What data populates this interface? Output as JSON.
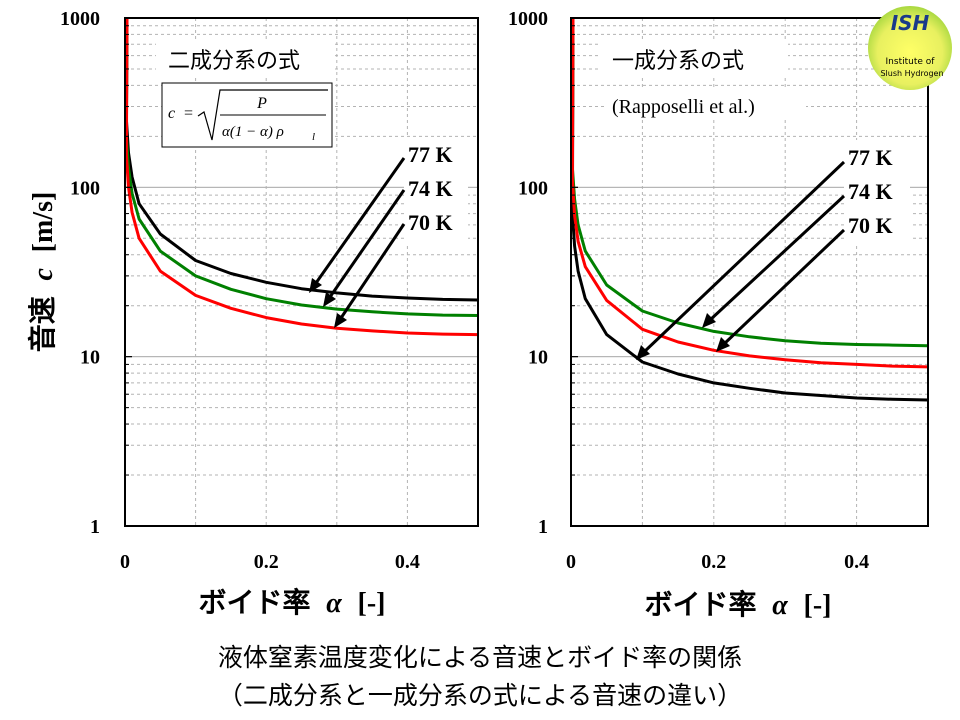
{
  "y_axis_label": {
    "main": "音速",
    "symbol": "c",
    "unit": "[m/s]"
  },
  "x_axis_label": {
    "main": "ボイド率",
    "symbol": "α",
    "unit": "[-]"
  },
  "caption": {
    "line1": "液体窒素温度変化による音速とボイド率の関係",
    "line2": "（二成分系と一成分系の式による音速の違い）"
  },
  "logo": {
    "title": "ISH",
    "line1": "Institute of",
    "line2": "Slush Hydrogen"
  },
  "colors": {
    "k77": "#000000",
    "k74": "#008000",
    "k70": "#ff0000",
    "grid": "#b3b3b3"
  },
  "chart_data": [
    {
      "type": "line",
      "title": "二成分系の式",
      "formula": {
        "lhs": "c",
        "num": "P",
        "den": "α(1 − α) ρ",
        "den_sub": "l"
      },
      "xlim": [
        0,
        0.5
      ],
      "ylim": [
        1,
        1000
      ],
      "yscale": "log",
      "xticks": [
        0,
        0.2,
        0.4
      ],
      "xtick_labels": [
        "0",
        "0.2",
        "0.4"
      ],
      "yticks": [
        1,
        10,
        100,
        1000
      ],
      "ytick_labels": [
        "1",
        "10",
        "100",
        "1000"
      ],
      "grid": true,
      "series": [
        {
          "name": "77 K",
          "color": "#000000",
          "x": [
            0.002,
            0.005,
            0.01,
            0.02,
            0.05,
            0.1,
            0.15,
            0.2,
            0.25,
            0.3,
            0.35,
            0.4,
            0.45,
            0.5
          ],
          "y": [
            250,
            160,
            115,
            80,
            53,
            37,
            31,
            27.5,
            25.2,
            23.8,
            22.8,
            22.2,
            21.8,
            21.6
          ]
        },
        {
          "name": "74 K",
          "color": "#008000",
          "x": [
            0.002,
            0.005,
            0.01,
            0.02,
            0.05,
            0.1,
            0.15,
            0.2,
            0.25,
            0.3,
            0.35,
            0.4,
            0.45,
            0.5
          ],
          "y": [
            200,
            130,
            92,
            65,
            42,
            30,
            25,
            22,
            20.2,
            19.1,
            18.4,
            17.9,
            17.6,
            17.5
          ]
        },
        {
          "name": "70 K",
          "color": "#ff0000",
          "x": [
            0.002,
            0.005,
            0.01,
            0.02,
            0.05,
            0.1,
            0.15,
            0.2,
            0.25,
            0.3,
            0.35,
            0.4,
            0.45,
            0.5
          ],
          "y": [
            155,
            100,
            71,
            50,
            32,
            23,
            19.3,
            17,
            15.6,
            14.7,
            14.2,
            13.8,
            13.6,
            13.5
          ]
        }
      ],
      "labels": [
        "77 K",
        "74 K",
        "70 K"
      ]
    },
    {
      "type": "line",
      "title": "一成分系の式",
      "subtitle": "(Rapposelli et al.)",
      "xlim": [
        0,
        0.5
      ],
      "ylim": [
        1,
        1000
      ],
      "yscale": "log",
      "xticks": [
        0,
        0.2,
        0.4
      ],
      "xtick_labels": [
        "0",
        "0.2",
        "0.4"
      ],
      "yticks": [
        1,
        10,
        100,
        1000
      ],
      "ytick_labels": [
        "1",
        "10",
        "100",
        "1000"
      ],
      "grid": true,
      "series": [
        {
          "name": "77 K",
          "color": "#000000",
          "x": [
            0.002,
            0.005,
            0.01,
            0.02,
            0.05,
            0.1,
            0.15,
            0.2,
            0.25,
            0.3,
            0.35,
            0.4,
            0.45,
            0.5
          ],
          "y": [
            70,
            45,
            32,
            22,
            13.5,
            9.3,
            7.9,
            7.0,
            6.5,
            6.1,
            5.9,
            5.7,
            5.6,
            5.55
          ]
        },
        {
          "name": "74 K",
          "color": "#008000",
          "x": [
            0.002,
            0.005,
            0.01,
            0.02,
            0.05,
            0.1,
            0.15,
            0.2,
            0.25,
            0.3,
            0.35,
            0.4,
            0.45,
            0.5
          ],
          "y": [
            130,
            85,
            60,
            42,
            26.5,
            18.6,
            15.8,
            14.1,
            13.1,
            12.4,
            12.0,
            11.8,
            11.7,
            11.6
          ]
        },
        {
          "name": "70 K",
          "color": "#ff0000",
          "x": [
            0.002,
            0.005,
            0.01,
            0.02,
            0.05,
            0.1,
            0.15,
            0.2,
            0.25,
            0.3,
            0.35,
            0.4,
            0.45,
            0.5
          ],
          "y": [
            110,
            68,
            48,
            34,
            21.5,
            14.5,
            12.2,
            10.9,
            10.1,
            9.6,
            9.2,
            9.0,
            8.8,
            8.7
          ]
        }
      ],
      "labels": [
        "77 K",
        "74 K",
        "70 K"
      ]
    }
  ]
}
